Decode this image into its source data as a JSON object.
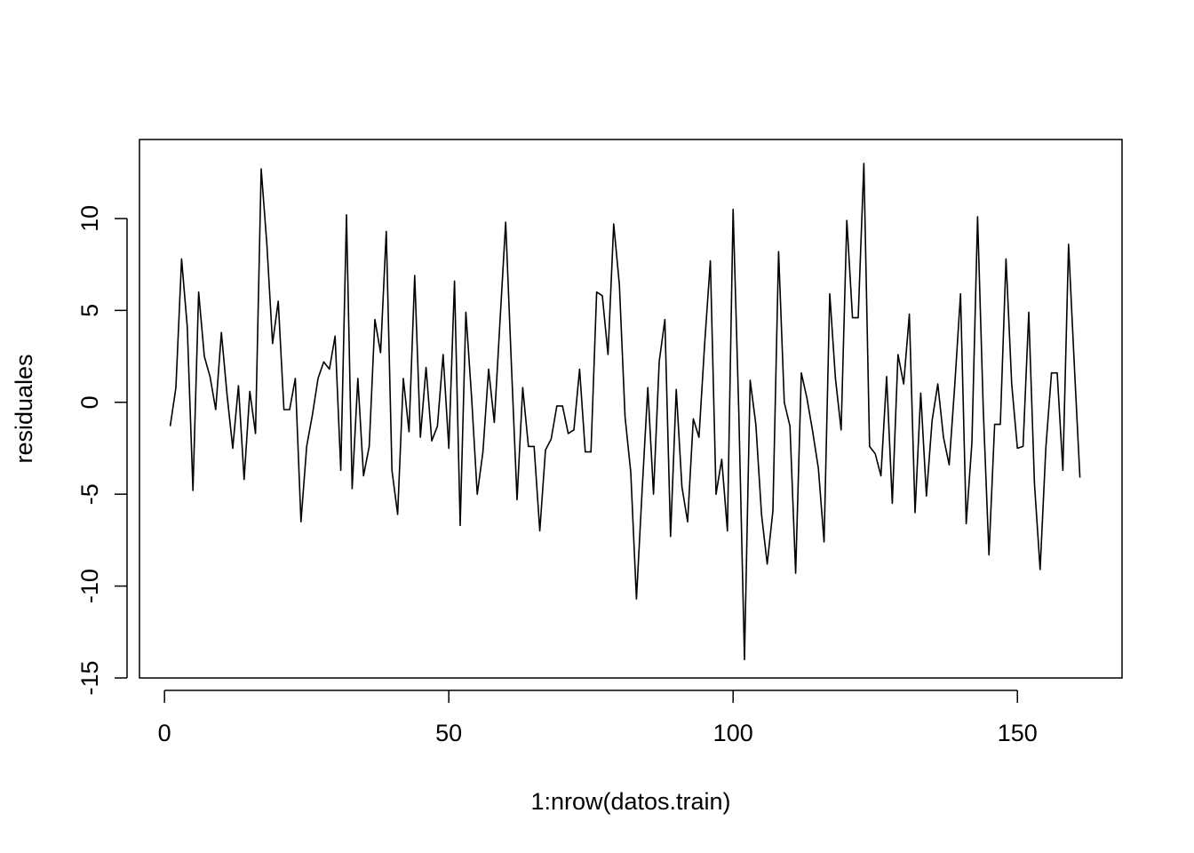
{
  "chart_data": {
    "type": "line",
    "title": "",
    "xlabel": "1:nrow(datos.train)",
    "ylabel": "residuales",
    "xlim": [
      -4.4,
      168.4
    ],
    "ylim": [
      -15.0,
      14.3
    ],
    "xticks": [
      0,
      50,
      100,
      150
    ],
    "xtick_labels": [
      "0",
      "50",
      "100",
      "150"
    ],
    "yticks": [
      -15,
      -10,
      -5,
      0,
      5,
      10
    ],
    "ytick_labels": [
      "-15",
      "-10",
      "-5",
      "0",
      "5",
      "10"
    ],
    "grid": false,
    "legend": "none",
    "color": "#000000",
    "series": [
      {
        "x": [
          1,
          2,
          3,
          4,
          5,
          6,
          7,
          8,
          9,
          10,
          11,
          12,
          13,
          14,
          15,
          16,
          17,
          18,
          19,
          20,
          21,
          22,
          23,
          24,
          25,
          26,
          27,
          28,
          29,
          30,
          31,
          32,
          33,
          34,
          35,
          36,
          37,
          38,
          39,
          40,
          41,
          42,
          43,
          44,
          45,
          46,
          47,
          48,
          49,
          50,
          51,
          52,
          53,
          54,
          55,
          56,
          57,
          58,
          59,
          60,
          61,
          62,
          63,
          64,
          65,
          66,
          67,
          68,
          69,
          70,
          71,
          72,
          73,
          74,
          75,
          76,
          77,
          78,
          79,
          80,
          81,
          82,
          83,
          84,
          85,
          86,
          87,
          88,
          89,
          90,
          91,
          92,
          93,
          94,
          95,
          96,
          97,
          98,
          99,
          100,
          101,
          102,
          103,
          104,
          105,
          106,
          107,
          108,
          109,
          110,
          111,
          112,
          113,
          114,
          115,
          116,
          117,
          118,
          119,
          120,
          121,
          122,
          123,
          124,
          125,
          126,
          127,
          128,
          129,
          130,
          131,
          132,
          133,
          134,
          135,
          136,
          137,
          138,
          139,
          140,
          141,
          142,
          143,
          144,
          145,
          146,
          147,
          148,
          149,
          150,
          151,
          152,
          153,
          154,
          155,
          156,
          157,
          158,
          159,
          160,
          161
        ],
        "values": [
          -1.3,
          0.8,
          7.8,
          4.1,
          -4.8,
          6.0,
          2.5,
          1.4,
          -0.4,
          3.8,
          0.4,
          -2.5,
          0.9,
          -4.2,
          0.6,
          -1.7,
          12.7,
          8.6,
          3.2,
          5.5,
          -0.4,
          -0.4,
          1.3,
          -6.5,
          -2.4,
          -0.7,
          1.3,
          2.2,
          1.8,
          3.6,
          -3.7,
          10.2,
          -4.7,
          1.3,
          -4.0,
          -2.4,
          4.5,
          2.7,
          9.3,
          -3.7,
          -6.1,
          1.3,
          -1.6,
          6.9,
          -1.9,
          1.9,
          -2.1,
          -1.3,
          2.6,
          -2.5,
          6.6,
          -6.7,
          4.9,
          0.3,
          -5.0,
          -2.7,
          1.8,
          -1.1,
          4.4,
          9.8,
          2.1,
          -5.3,
          0.8,
          -2.4,
          -2.4,
          -7.0,
          -2.6,
          -2.0,
          -0.2,
          -0.2,
          -1.7,
          -1.5,
          1.8,
          -2.7,
          -2.7,
          6.0,
          5.8,
          2.6,
          9.7,
          6.4,
          -0.8,
          -3.8,
          -10.7,
          -4.8,
          0.8,
          -5.0,
          2.2,
          4.5,
          -7.3,
          0.7,
          -4.6,
          -6.5,
          -0.9,
          -1.9,
          3.2,
          7.7,
          -5.0,
          -3.1,
          -7.0,
          10.5,
          -0.5,
          -14.0,
          1.2,
          -1.2,
          -6.1,
          -8.8,
          -5.9,
          8.2,
          0.0,
          -1.3,
          -9.3,
          1.6,
          0.2,
          -1.6,
          -3.6,
          -7.6,
          5.9,
          1.3,
          -1.5,
          9.9,
          4.6,
          4.6,
          13.0,
          -2.4,
          -2.8,
          -4.0,
          1.4,
          -5.5,
          2.6,
          1.0,
          4.8,
          -6.0,
          0.5,
          -5.1,
          -1.0,
          1.0,
          -1.9,
          -3.4,
          1.0,
          5.9,
          -6.6,
          -2.2,
          10.1,
          -0.4,
          -8.3,
          -1.2,
          -1.2,
          7.8,
          1.0,
          -2.5,
          -2.4,
          4.9,
          -4.4,
          -9.1,
          -2.5,
          1.6,
          1.6,
          -3.7,
          8.6,
          2.1,
          -4.1
        ]
      }
    ]
  }
}
